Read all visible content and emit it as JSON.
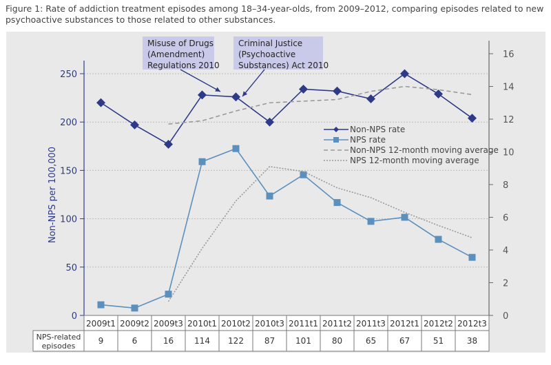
{
  "caption": "Figure 1: Rate of addiction treatment episodes among 18–34-year-olds, from 2009–2012, comparing episodes related to new psychoactive substances to those related to other substances.",
  "chart_data": {
    "type": "line",
    "categories": [
      "2009t1",
      "2009t2",
      "2009t3",
      "2010t1",
      "2010t2",
      "2010t3",
      "2011t1",
      "2011t2",
      "2011t3",
      "2012t1",
      "2012t2",
      "2012t3"
    ],
    "ylabel": "Non-NPS per 100,000",
    "ylim": [
      0,
      275
    ],
    "yticks": [
      0,
      50,
      100,
      150,
      200,
      250
    ],
    "y2lim": [
      0,
      16
    ],
    "y2ticks": [
      0,
      2,
      4,
      6,
      8,
      10,
      12,
      14,
      16
    ],
    "grid": true,
    "legend_position": "right-middle",
    "series": [
      {
        "name": "Non-NPS rate",
        "axis": "left",
        "style": "solid",
        "marker": "diamond",
        "color": "#2e3a87",
        "values": [
          220,
          197,
          177,
          228,
          226,
          200,
          234,
          232,
          224,
          250,
          229,
          204
        ]
      },
      {
        "name": "NPS rate",
        "axis": "right",
        "style": "solid",
        "marker": "square",
        "color": "#5b8fbd",
        "values": [
          0.65,
          0.45,
          1.3,
          9.4,
          10.2,
          7.3,
          8.6,
          6.9,
          5.75,
          6.0,
          4.65,
          3.55
        ]
      },
      {
        "name": "Non-NPS 12-month moving average",
        "axis": "right",
        "style": "dashed",
        "color": "#999999",
        "values": [
          null,
          null,
          11.7,
          11.9,
          12.5,
          13.0,
          13.1,
          13.2,
          13.7,
          14.0,
          13.8,
          13.5
        ]
      },
      {
        "name": "NPS 12-month moving average",
        "axis": "right",
        "style": "dotted",
        "color": "#999999",
        "values": [
          null,
          null,
          0.85,
          4.1,
          7.0,
          9.1,
          8.8,
          7.8,
          7.2,
          6.3,
          5.5,
          4.75
        ]
      }
    ],
    "annotations": [
      {
        "text": [
          "Misuse of Drugs",
          "(Amendment)",
          "Regulations 2010"
        ],
        "points_to": "2010t1"
      },
      {
        "text": [
          "Criminal Justice",
          "(Psychoactive",
          "Substances) Act 2010"
        ],
        "points_to": "2010t2"
      }
    ],
    "table": {
      "row_label": [
        "NPS-related",
        "episodes"
      ],
      "values": [
        "9",
        "6",
        "16",
        "114",
        "122",
        "87",
        "101",
        "80",
        "65",
        "67",
        "51",
        "38"
      ]
    }
  }
}
